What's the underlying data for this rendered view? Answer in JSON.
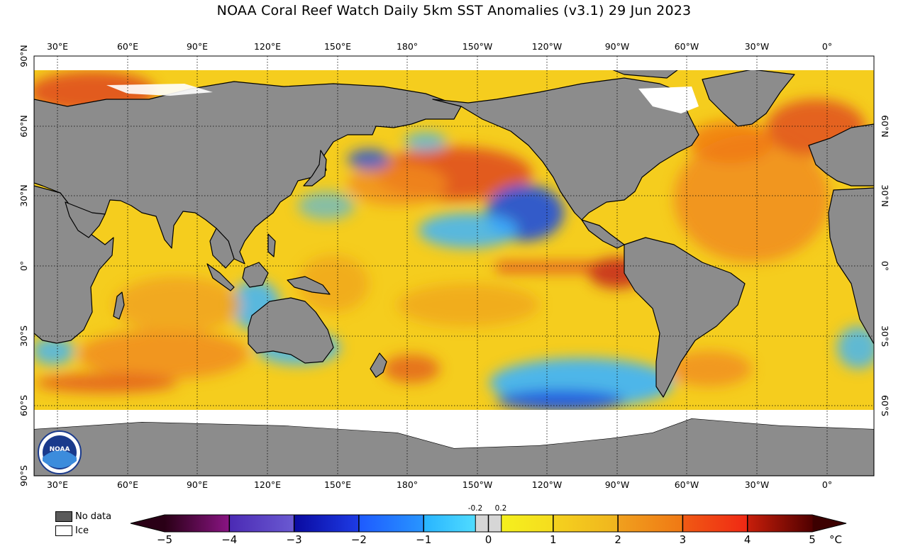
{
  "title": "NOAA Coral Reef Watch Daily 5km SST Anomalies  (v3.1)   29 Jun 2023",
  "lon_labels": [
    "30°E",
    "60°E",
    "90°E",
    "120°E",
    "150°E",
    "180°",
    "150°W",
    "120°W",
    "90°W",
    "60°W",
    "30°W",
    "0°"
  ],
  "lat_labels_left": [
    "90°N",
    "60°N",
    "30°N",
    "0°",
    "30°S",
    "60°S",
    "90°S"
  ],
  "lat_labels_right": [
    "60°N",
    "30°N",
    "0°",
    "30°S",
    "60°S"
  ],
  "logo_text": "NOAA",
  "legend": {
    "no_data_label": "No data",
    "ice_label": "Ice",
    "no_data_color": "#5a5a5a",
    "ice_color": "#ffffff"
  },
  "colorbar": {
    "ticks": [
      "−5",
      "−4",
      "−3",
      "−2",
      "−1",
      "0",
      "1",
      "2",
      "3",
      "4",
      "5"
    ],
    "small_ticks": [
      "-0.2",
      "0.2"
    ],
    "unit": "°C",
    "range": [
      -5,
      5
    ],
    "colors": [
      "#2a0016",
      "#7a0a6e",
      "#5a3cc8",
      "#1414a0",
      "#1e64ff",
      "#3cc8ff",
      "#d6d6d6",
      "#f0e61e",
      "#f0c81e",
      "#f0a01e",
      "#f07814",
      "#f03c14",
      "#b41e0a",
      "#3c0000"
    ]
  },
  "colors": {
    "land": "#8c8c8c",
    "ocean_base": "#f5cd1e",
    "warm": "#f08c1e",
    "hot": "#e0461e",
    "cool": "#3cb4ff",
    "cold": "#1e50dc",
    "ice": "#ffffff"
  }
}
